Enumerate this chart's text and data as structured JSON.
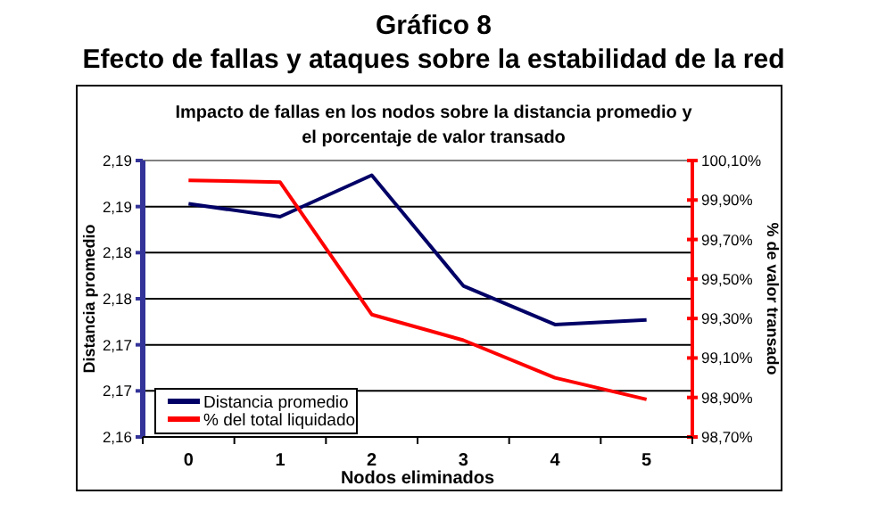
{
  "chart_data": {
    "type": "line",
    "title": "Gráfico 8\nEfecto de fallas y ataques sobre la estabilidad de la red",
    "subtitle": "Impacto de fallas en los nodos sobre la distancia promedio y\nel porcentaje de valor transado",
    "xlabel": "Nodos eliminados",
    "ylabel": "Distancia promedio",
    "y2label": "% de valor transado",
    "categories": [
      "0",
      "1",
      "2",
      "3",
      "4",
      "5"
    ],
    "series": [
      {
        "name": "Distancia promedio",
        "color": "#000066",
        "values": [
          2.1853,
          2.1839,
          2.1884,
          2.1764,
          2.1722,
          2.1727
        ]
      },
      {
        "name": "% del total liquidado",
        "color": "#ff0000",
        "axis": "y2",
        "values": [
          100.0,
          99.99,
          99.32,
          99.19,
          99.0,
          98.89
        ]
      }
    ],
    "ylim": [
      2.16,
      2.19
    ],
    "yticks": [
      {
        "value": 2.16,
        "label": "2,16"
      },
      {
        "value": 2.165,
        "label": "2,17"
      },
      {
        "value": 2.17,
        "label": "2,17"
      },
      {
        "value": 2.175,
        "label": "2,18"
      },
      {
        "value": 2.18,
        "label": "2,18"
      },
      {
        "value": 2.185,
        "label": "2,19"
      },
      {
        "value": 2.19,
        "label": "2,19"
      }
    ],
    "y2lim": [
      98.7,
      100.1
    ],
    "y2ticks": [
      {
        "value": 98.7,
        "label": "98,70%"
      },
      {
        "value": 98.9,
        "label": "98,90%"
      },
      {
        "value": 99.1,
        "label": "99,10%"
      },
      {
        "value": 99.3,
        "label": "99,30%"
      },
      {
        "value": 99.5,
        "label": "99,50%"
      },
      {
        "value": 99.7,
        "label": "99,70%"
      },
      {
        "value": 99.9,
        "label": "99,90%"
      },
      {
        "value": 100.1,
        "label": "100,10%"
      }
    ],
    "grid": "y",
    "legend": "bottom left",
    "marker": "none",
    "line_style": "solid"
  }
}
